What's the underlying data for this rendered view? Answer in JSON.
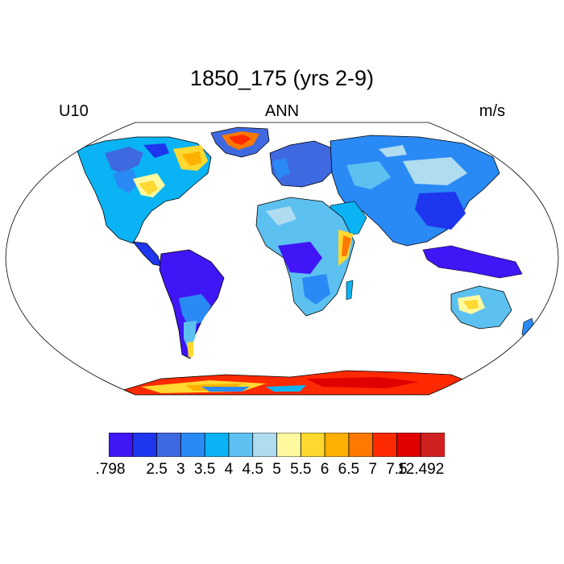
{
  "map": {
    "title": "1850_175 (yrs 2-9)",
    "left_label": "U10",
    "center_label": "ANN",
    "right_label": "m/s",
    "projection": "robinson",
    "variable": "U10",
    "season": "ANN",
    "units": "m/s"
  },
  "colorbar": {
    "colors": [
      "#4016F6",
      "#1E36EE",
      "#3F69E0",
      "#2A8AF5",
      "#0AB4F4",
      "#5CC1F0",
      "#B0DCF0",
      "#FFF9A0",
      "#FFD830",
      "#FFB000",
      "#FF7800",
      "#FF2A00",
      "#E00000",
      "#D02020"
    ],
    "labels": [
      ".798",
      "2.5",
      "3",
      "3.5",
      "4",
      "4.5",
      "5",
      "5.5",
      "6",
      "6.5",
      "7",
      "7.5",
      "12.492"
    ],
    "min": 0.798,
    "max": 12.492
  }
}
